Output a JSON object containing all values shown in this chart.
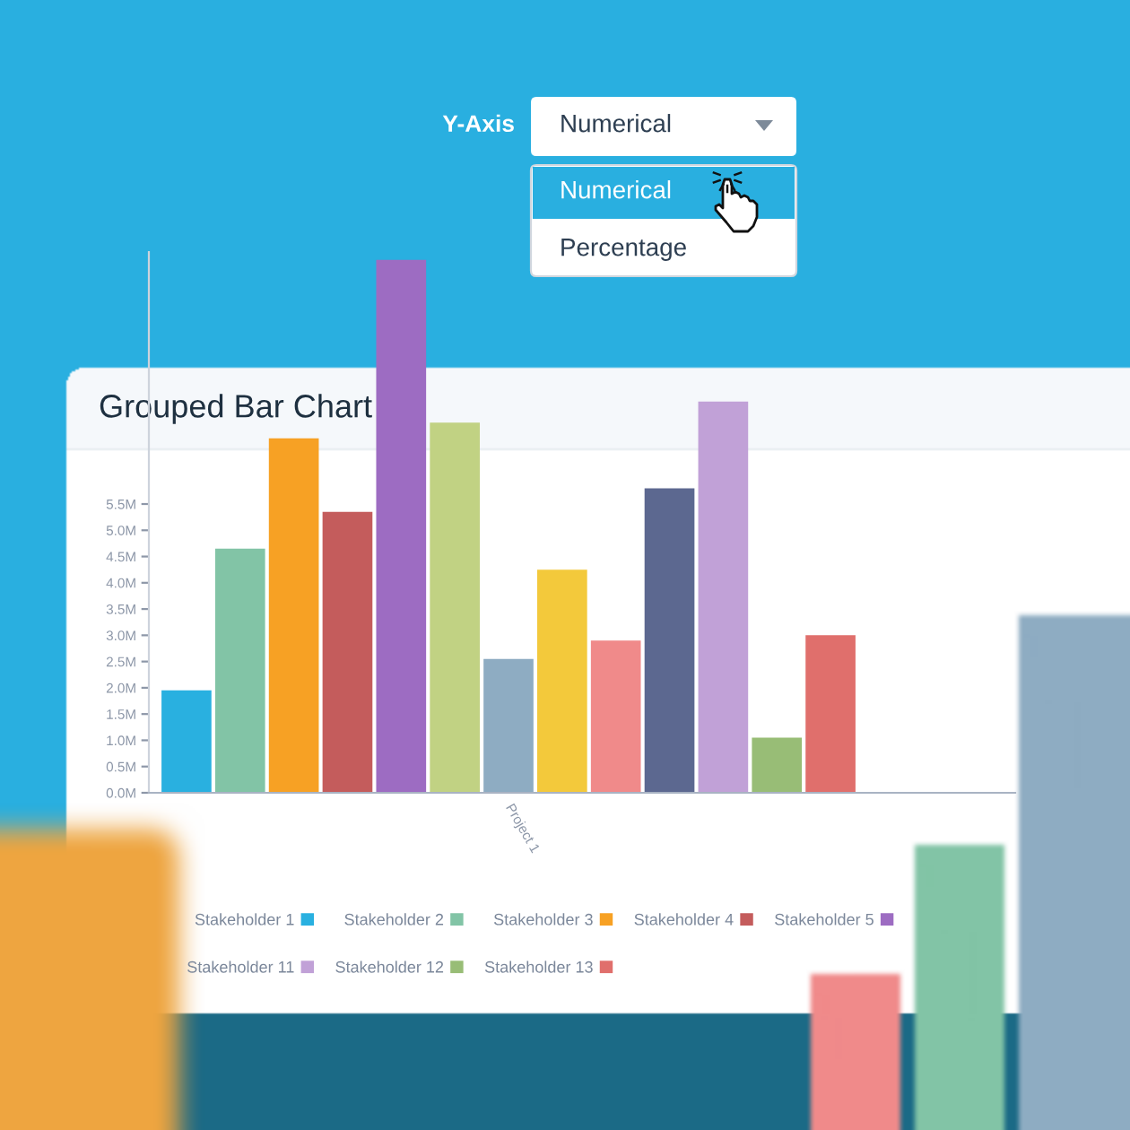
{
  "chart_data": {
    "type": "bar",
    "title": "Grouped Bar Chart",
    "categories": [
      "Project 1"
    ],
    "series": [
      {
        "name": "Stakeholder 1",
        "color": "#29b0e0",
        "values": [
          1.95
        ]
      },
      {
        "name": "Stakeholder 2",
        "color": "#82c4a6",
        "values": [
          4.65
        ]
      },
      {
        "name": "Stakeholder 3",
        "color": "#f7a124",
        "values": [
          6.75
        ]
      },
      {
        "name": "Stakeholder 4",
        "color": "#c45c5c",
        "values": [
          5.35
        ]
      },
      {
        "name": "Stakeholder 5",
        "color": "#9d6cc2",
        "values": [
          10.15
        ]
      },
      {
        "color": "#c1d283",
        "values": [
          7.05
        ]
      },
      {
        "color": "#8eacc2",
        "values": [
          2.55
        ]
      },
      {
        "color": "#f3c93b",
        "values": [
          4.25
        ]
      },
      {
        "color": "#f08a8a",
        "values": [
          2.9
        ]
      },
      {
        "color": "#5c6890",
        "values": [
          5.8
        ]
      },
      {
        "name": "Stakeholder 11",
        "color": "#c1a1d7",
        "values": [
          7.45
        ]
      },
      {
        "name": "Stakeholder 12",
        "color": "#98bd76",
        "values": [
          1.05
        ]
      },
      {
        "name": "Stakeholder 13",
        "color": "#e06f6c",
        "values": [
          3.0
        ]
      }
    ],
    "ylim": [
      0,
      10.3
    ],
    "yticks": [
      {
        "value": 0,
        "label": "0.0M"
      },
      {
        "value": 0.5,
        "label": "0.5M"
      },
      {
        "value": 1,
        "label": "1.0M"
      },
      {
        "value": 1.5,
        "label": "1.5M"
      },
      {
        "value": 2,
        "label": "2.0M"
      },
      {
        "value": 2.5,
        "label": "2.5M"
      },
      {
        "value": 3,
        "label": "3.0M"
      },
      {
        "value": 3.5,
        "label": "3.5M"
      },
      {
        "value": 4,
        "label": "4.0M"
      },
      {
        "value": 4.5,
        "label": "4.5M"
      },
      {
        "value": 5,
        "label": "5.0M"
      },
      {
        "value": 5.5,
        "label": "5.5M"
      }
    ],
    "legend": "bottom",
    "annotations": [
      "Y-Axis",
      "Numerical",
      "Numerical",
      "Percentage"
    ]
  }
}
